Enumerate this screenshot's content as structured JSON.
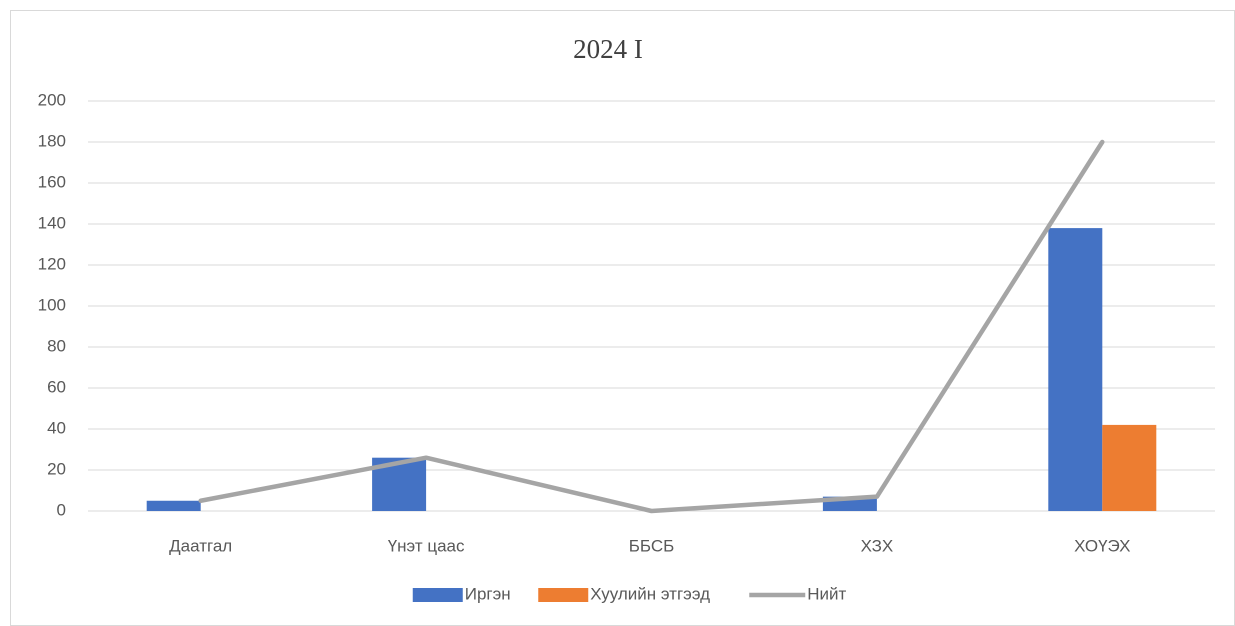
{
  "chart_data": {
    "type": "bar",
    "title": "2024 I",
    "categories": [
      "Даатгал",
      "Үнэт цаас",
      "ББСБ",
      "ХЗХ",
      "ХОҮЭХ"
    ],
    "series": [
      {
        "name": "Иргэн",
        "color": "#4472c4",
        "type": "bar",
        "values": [
          5,
          26,
          0,
          7,
          138
        ]
      },
      {
        "name": "Хуулийн этгээд",
        "color": "#ed7d31",
        "type": "bar",
        "values": [
          0,
          0,
          0,
          0,
          42
        ]
      },
      {
        "name": "Нийт",
        "color": "#a5a5a5",
        "type": "line",
        "values": [
          5,
          26,
          0,
          7,
          180
        ]
      }
    ],
    "ylim": [
      0,
      200
    ],
    "yticks": [
      0,
      20,
      40,
      60,
      80,
      100,
      120,
      140,
      160,
      180,
      200
    ],
    "grid": true,
    "legend": "bottom"
  }
}
